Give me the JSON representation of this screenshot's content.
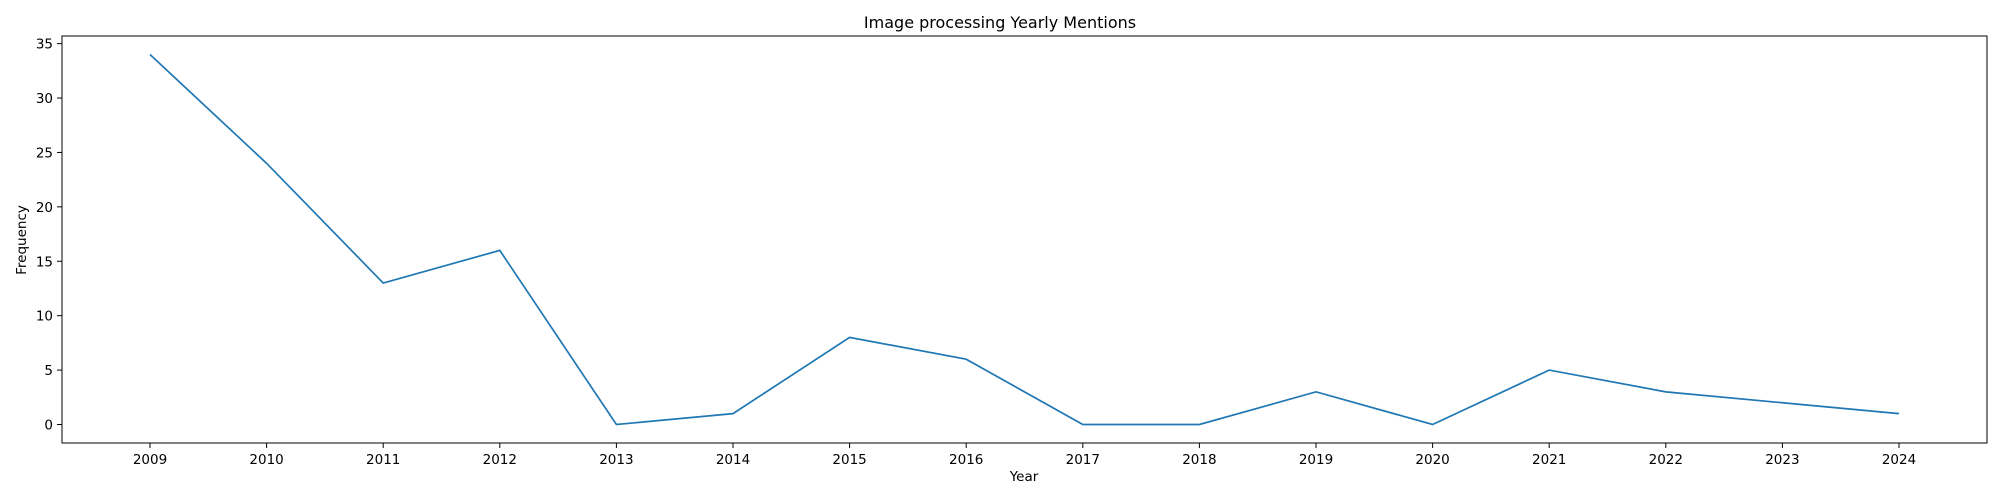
{
  "chart_data": {
    "type": "line",
    "title": "Image processing Yearly Mentions",
    "xlabel": "Year",
    "ylabel": "Frequency",
    "x": [
      "2009",
      "2010",
      "2011",
      "2012",
      "2013",
      "2014",
      "2015",
      "2016",
      "2017",
      "2018",
      "2019",
      "2020",
      "2021",
      "2022",
      "2023",
      "2024"
    ],
    "series": [
      {
        "values": [
          34,
          24,
          13,
          16,
          0,
          1,
          8,
          6,
          0,
          0,
          3,
          0,
          5,
          3,
          2,
          1
        ],
        "color": "#1f77b4"
      }
    ],
    "y_ticks": [
      0,
      5,
      10,
      15,
      20,
      25,
      30,
      35
    ],
    "ylim": [
      -1.7,
      35.7
    ],
    "grid": false,
    "legend": "none"
  }
}
